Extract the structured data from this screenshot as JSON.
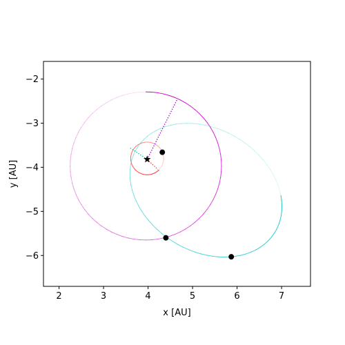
{
  "chart_data": {
    "type": "line",
    "title": "",
    "xlabel": "x [AU]",
    "ylabel": "y [AU]",
    "xlim": [
      1.65,
      7.65
    ],
    "ylim": [
      -6.7,
      -1.6
    ],
    "xticks": [
      2,
      3,
      4,
      5,
      6,
      7
    ],
    "yticks": [
      -2,
      -3,
      -4,
      -5,
      -6
    ],
    "grid": false,
    "legend": "none",
    "central_star": {
      "x": 3.98,
      "y": -3.82,
      "marker": "star",
      "color": "#000000"
    },
    "series": [
      {
        "color": "#ff3030",
        "orbit": {
          "cx": 3.98,
          "cy": -3.8,
          "rx": 0.37,
          "ry": 0.37,
          "phase_deg": -45
        },
        "body": {
          "x": 4.32,
          "y": -3.66
        },
        "apsis_line": [
          [
            3.98,
            -3.82
          ],
          [
            4.22,
            -4.05
          ]
        ],
        "apsis_color": "#ff3030"
      },
      {
        "color": "#cc00cc",
        "orbit": {
          "cx": 3.95,
          "cy": -3.97,
          "rx": 1.7,
          "ry": 1.68,
          "phase_deg": 90
        },
        "body": {
          "x": 4.4,
          "y": -5.6
        },
        "apsis_line": [
          [
            3.98,
            -3.82
          ],
          [
            4.66,
            -2.45
          ]
        ],
        "apsis_color": "#9400d3"
      },
      {
        "color": "#20c8c8",
        "orbit": {
          "cx": 5.3,
          "cy": -4.52,
          "rx": 1.82,
          "ry": 1.38,
          "rotation_deg": -32,
          "phase_deg": 35
        },
        "body": {
          "x": 5.87,
          "y": -6.03
        },
        "apsis_line": [
          [
            3.98,
            -3.82
          ],
          [
            3.58,
            -3.55
          ]
        ],
        "apsis_color": "#20b090"
      }
    ]
  }
}
